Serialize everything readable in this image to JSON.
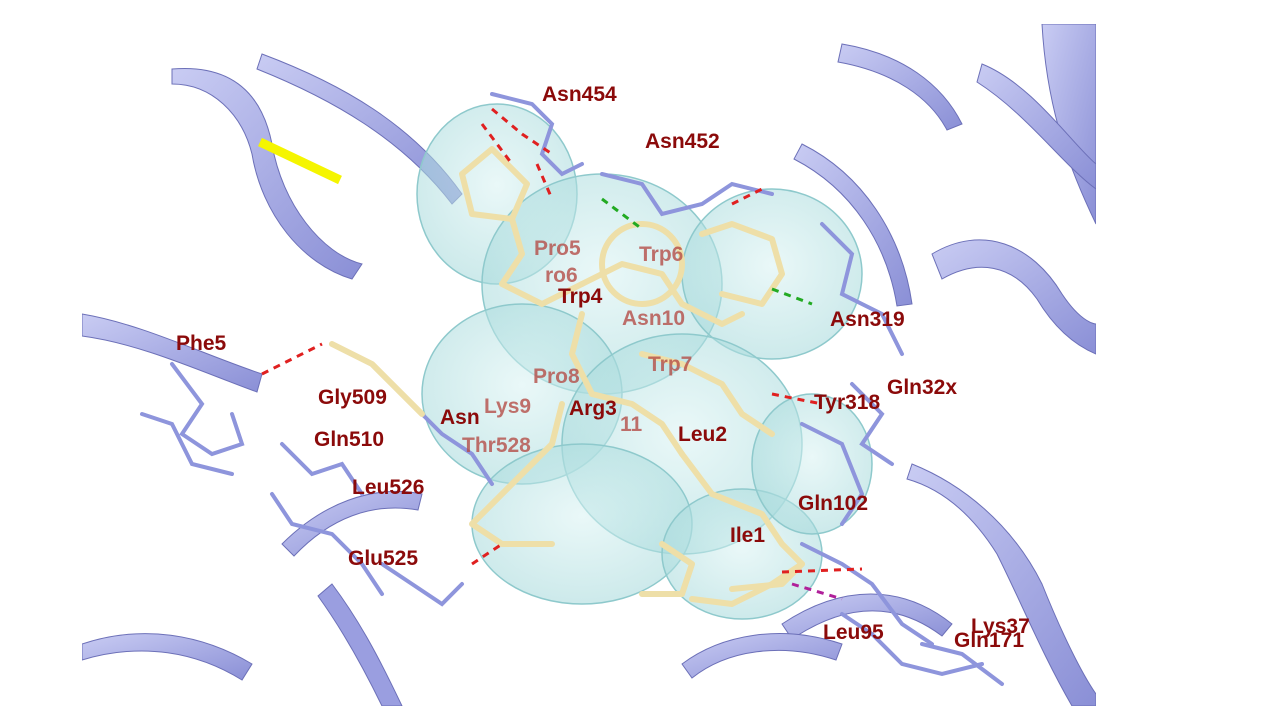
{
  "colors": {
    "ribbon": "#aeb3ea",
    "ribbon_dark": "#6c70b8",
    "ligand": "#eedfa8",
    "surface": "#bfe6e6",
    "residue_sticks": "#8e95dc",
    "label_red": "#8b0a0a",
    "hbond_red": "#e02020",
    "hbond_green": "#22aa22",
    "hbond_magenta": "#b0209a",
    "highlight_yellow": "#f5f500"
  },
  "labels": {
    "asn454": "Asn454",
    "asn452": "Asn452",
    "pro5": "Pro5",
    "trp6": "Trp6",
    "partial_pro6": "ro6",
    "trp4": "Trp4",
    "asn319": "Asn319",
    "asn10": "Asn10",
    "phe": "Phe5",
    "trp7": "Trp7",
    "pro8": "Pro8",
    "gln32x": "Gln32x",
    "gly509": "Gly509",
    "lys9": "Lys9",
    "arg3": "Arg3",
    "tyr318": "Tyr318",
    "asn": "Asn",
    "residue11": "11",
    "gln510": "Gln510",
    "thr528": "Thr528",
    "leu2": "Leu2",
    "leu526": "Leu526",
    "gln102": "Gln102",
    "ile1": "Ile1",
    "glu525": "Glu525",
    "leu95": "Leu95",
    "lys37": "Lys37",
    "gln171": "Gln171"
  }
}
